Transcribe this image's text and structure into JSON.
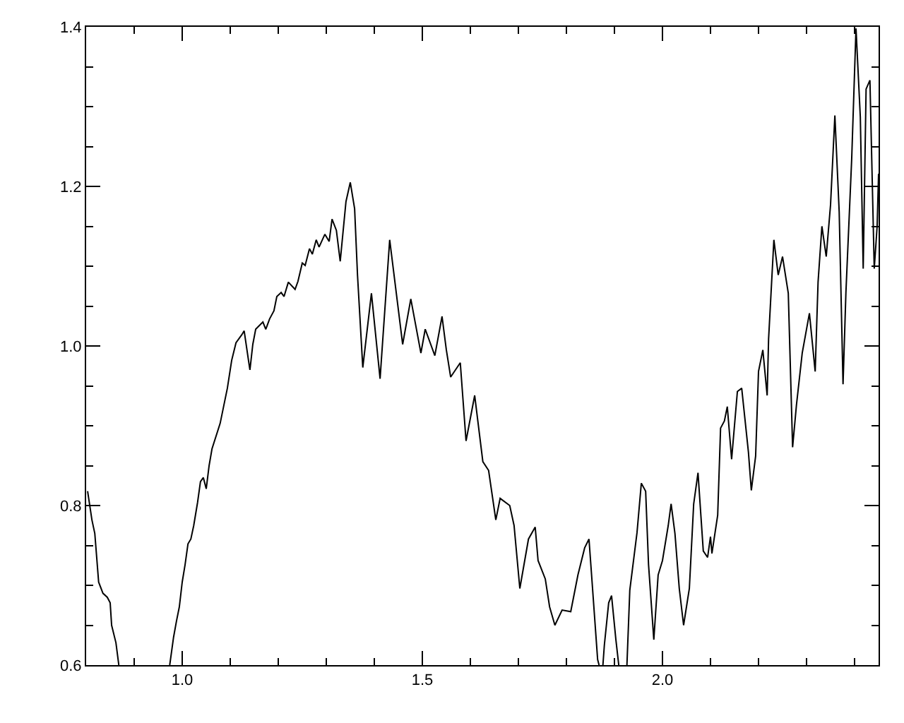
{
  "chart_data": {
    "type": "line",
    "color": "#000000",
    "marker": "none",
    "line_style": "solid",
    "xlim": [
      0.8,
      2.45
    ],
    "ylim": [
      0.6,
      1.4
    ],
    "xticks": [
      {
        "value": 0.9,
        "label": null
      },
      {
        "value": 1.0,
        "label": "1.0"
      },
      {
        "value": 1.1,
        "label": null
      },
      {
        "value": 1.2,
        "label": null
      },
      {
        "value": 1.3,
        "label": null
      },
      {
        "value": 1.4,
        "label": null
      },
      {
        "value": 1.5,
        "label": "1.5"
      },
      {
        "value": 1.6,
        "label": null
      },
      {
        "value": 1.7,
        "label": null
      },
      {
        "value": 1.8,
        "label": null
      },
      {
        "value": 1.9,
        "label": null
      },
      {
        "value": 2.0,
        "label": "2.0"
      },
      {
        "value": 2.1,
        "label": null
      },
      {
        "value": 2.2,
        "label": null
      },
      {
        "value": 2.3,
        "label": null
      },
      {
        "value": 2.4,
        "label": null
      }
    ],
    "yticks": [
      {
        "value": 0.6,
        "label": "0.6"
      },
      {
        "value": 0.65,
        "label": null
      },
      {
        "value": 0.7,
        "label": null
      },
      {
        "value": 0.75,
        "label": null
      },
      {
        "value": 0.8,
        "label": "0.8"
      },
      {
        "value": 0.85,
        "label": null
      },
      {
        "value": 0.9,
        "label": null
      },
      {
        "value": 0.95,
        "label": null
      },
      {
        "value": 1.0,
        "label": "1.0"
      },
      {
        "value": 1.05,
        "label": null
      },
      {
        "value": 1.1,
        "label": null
      },
      {
        "value": 1.15,
        "label": null
      },
      {
        "value": 1.2,
        "label": "1.2"
      },
      {
        "value": 1.25,
        "label": null
      },
      {
        "value": 1.3,
        "label": null
      },
      {
        "value": 1.35,
        "label": null
      },
      {
        "value": 1.4,
        "label": "1.4"
      }
    ],
    "x": [
      0.803,
      0.812,
      0.818,
      0.826,
      0.835,
      0.844,
      0.85,
      0.853,
      0.862,
      0.868,
      0.94,
      0.974,
      0.982,
      0.988,
      0.994,
      1.0,
      1.006,
      1.012,
      1.018,
      1.024,
      1.032,
      1.038,
      1.044,
      1.05,
      1.056,
      1.062,
      1.079,
      1.094,
      1.103,
      1.112,
      1.124,
      1.129,
      1.138,
      1.141,
      1.147,
      1.153,
      1.168,
      1.174,
      1.182,
      1.191,
      1.197,
      1.206,
      1.212,
      1.221,
      1.235,
      1.241,
      1.25,
      1.256,
      1.265,
      1.271,
      1.279,
      1.285,
      1.297,
      1.306,
      1.312,
      1.321,
      1.329,
      1.341,
      1.35,
      1.359,
      1.365,
      1.376,
      1.394,
      1.412,
      1.432,
      1.459,
      1.476,
      1.497,
      1.506,
      1.526,
      1.541,
      1.55,
      1.559,
      1.579,
      1.591,
      1.609,
      1.626,
      1.638,
      1.653,
      1.662,
      1.682,
      1.691,
      1.703,
      1.721,
      1.735,
      1.741,
      1.756,
      1.765,
      1.776,
      1.791,
      1.809,
      1.824,
      1.838,
      1.847,
      1.853,
      1.865,
      1.868,
      1.871,
      1.876,
      1.879,
      1.888,
      1.894,
      1.903,
      1.909,
      1.915,
      1.926,
      1.932,
      1.947,
      1.956,
      1.965,
      1.971,
      1.982,
      1.991,
      2.0,
      2.012,
      2.018,
      2.026,
      2.035,
      2.044,
      2.056,
      2.065,
      2.074,
      2.085,
      2.094,
      2.1,
      2.103,
      2.115,
      2.121,
      2.129,
      2.135,
      2.144,
      2.156,
      2.165,
      2.179,
      2.185,
      2.194,
      2.2,
      2.209,
      2.218,
      2.221,
      2.232,
      2.241,
      2.25,
      2.262,
      2.271,
      2.279,
      2.291,
      2.306,
      2.318,
      2.324,
      2.332,
      2.341,
      2.35,
      2.359,
      2.368,
      2.376,
      2.382,
      2.394,
      2.403,
      2.412,
      2.418,
      2.424,
      2.432,
      2.441,
      2.447,
      2.45
    ],
    "values": [
      0.818,
      0.782,
      0.765,
      0.704,
      0.69,
      0.685,
      0.678,
      0.65,
      0.628,
      0.6,
      null,
      0.6,
      0.635,
      0.655,
      0.673,
      0.704,
      0.726,
      0.752,
      0.758,
      0.775,
      0.804,
      0.83,
      0.835,
      0.821,
      0.85,
      0.871,
      0.903,
      0.947,
      0.982,
      1.004,
      1.014,
      1.019,
      0.982,
      0.97,
      1.002,
      1.021,
      1.03,
      1.021,
      1.034,
      1.044,
      1.062,
      1.067,
      1.062,
      1.08,
      1.071,
      1.081,
      1.104,
      1.101,
      1.122,
      1.115,
      1.133,
      1.124,
      1.14,
      1.131,
      1.159,
      1.145,
      1.106,
      1.181,
      1.205,
      1.172,
      1.089,
      0.973,
      1.066,
      0.959,
      1.133,
      1.002,
      1.059,
      0.991,
      1.021,
      0.988,
      1.037,
      0.995,
      0.961,
      0.979,
      0.881,
      0.938,
      0.855,
      0.844,
      0.782,
      0.809,
      0.8,
      0.775,
      0.696,
      0.758,
      0.773,
      0.731,
      0.708,
      0.673,
      0.65,
      0.669,
      0.667,
      0.713,
      0.747,
      0.758,
      0.708,
      0.607,
      0.6,
      null,
      0.6,
      0.625,
      0.678,
      0.687,
      0.632,
      0.6,
      null,
      0.6,
      0.694,
      0.766,
      0.828,
      0.818,
      0.726,
      0.632,
      0.713,
      0.731,
      0.775,
      0.802,
      0.765,
      0.696,
      0.65,
      0.696,
      0.802,
      0.841,
      0.743,
      0.735,
      0.761,
      0.74,
      0.788,
      0.897,
      0.906,
      0.924,
      0.858,
      0.943,
      0.947,
      0.867,
      0.819,
      0.862,
      0.968,
      0.995,
      0.938,
      1.009,
      1.133,
      1.089,
      1.112,
      1.066,
      0.873,
      0.926,
      0.991,
      1.041,
      0.968,
      1.08,
      1.15,
      1.112,
      1.177,
      1.289,
      1.168,
      0.952,
      1.067,
      1.234,
      1.398,
      1.287,
      1.097,
      1.322,
      1.333,
      1.097,
      1.15,
      1.216
    ]
  }
}
